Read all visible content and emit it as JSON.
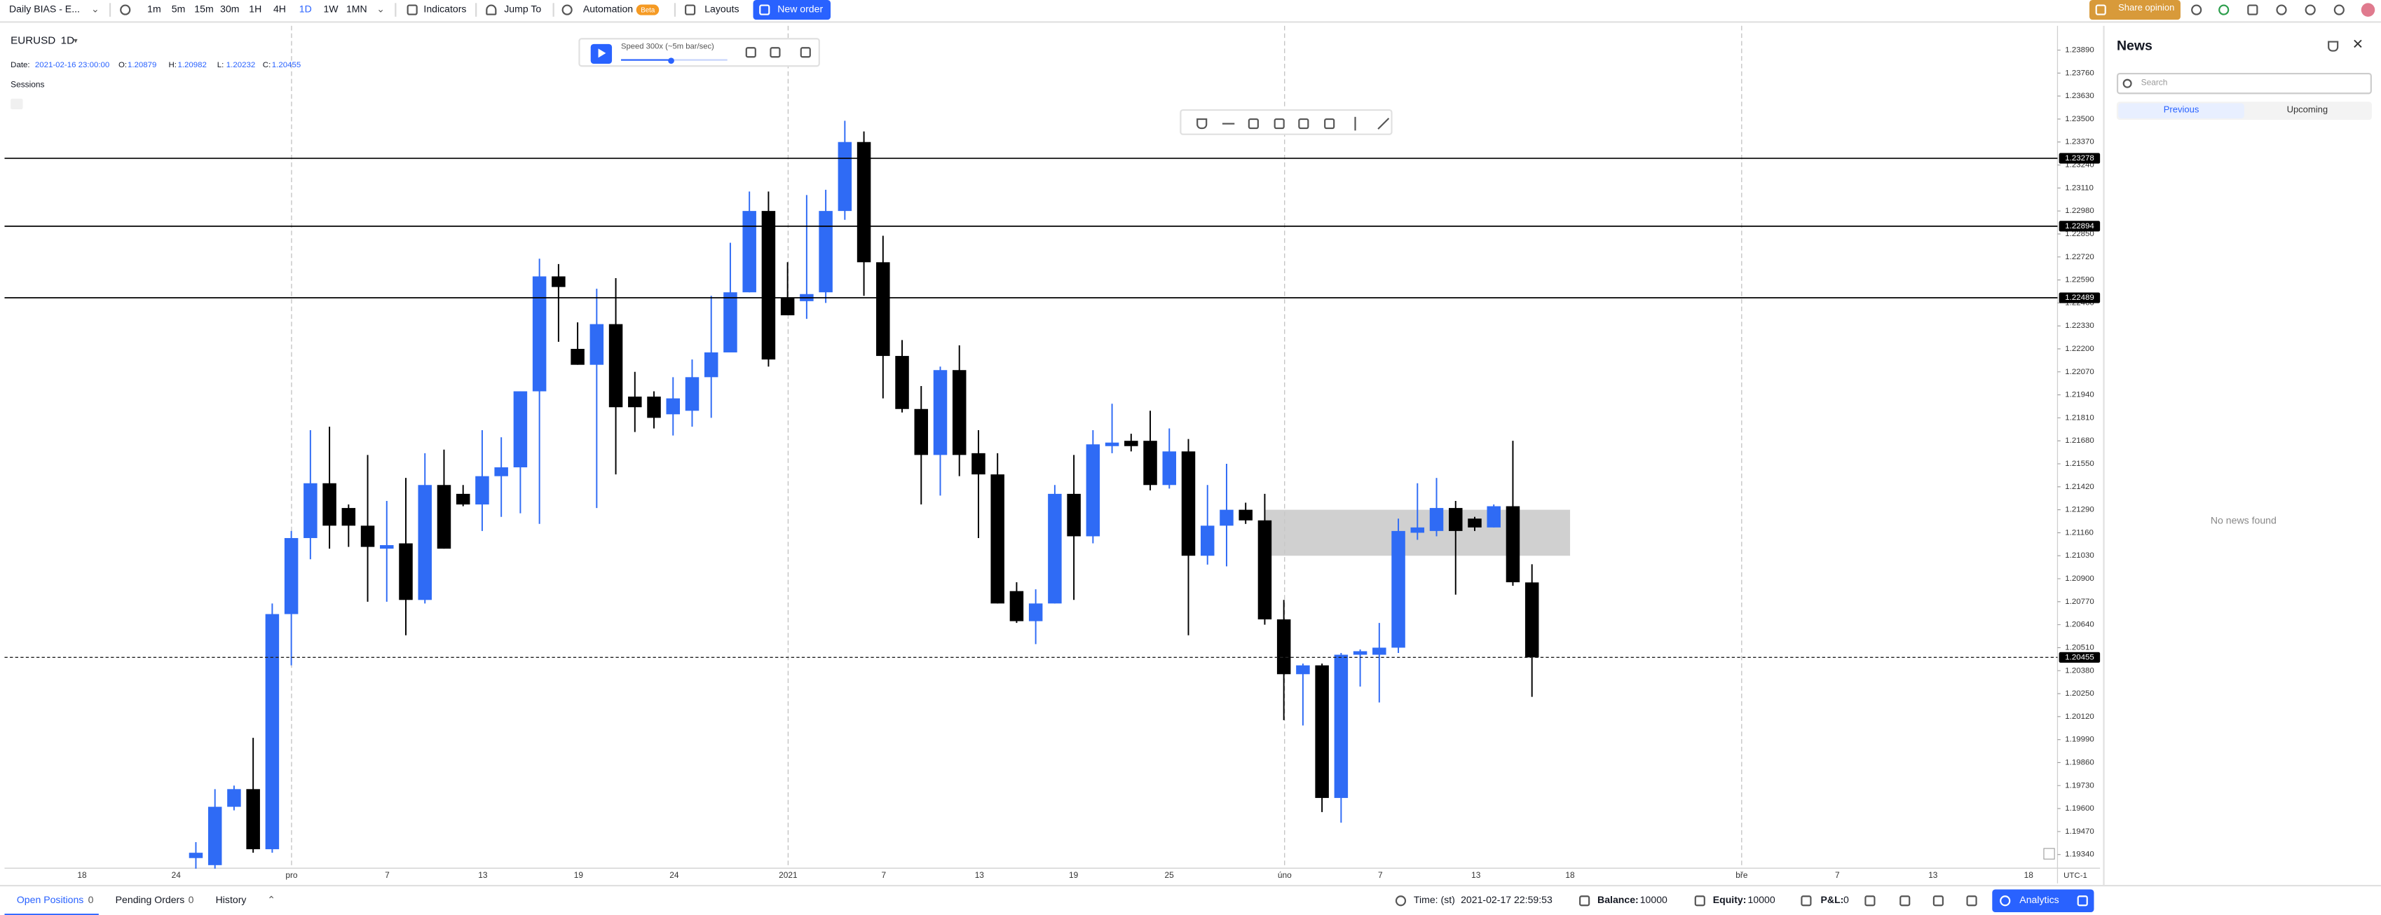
{
  "toolbar": {
    "layout_name": "Daily BIAS - E...",
    "timeframes": [
      "1m",
      "5m",
      "15m",
      "30m",
      "1H",
      "4H",
      "1D",
      "1W",
      "1MN"
    ],
    "active_timeframe_index": 6,
    "indicators": "Indicators",
    "jump_to": "Jump To",
    "automation": "Automation",
    "beta": "Beta",
    "layouts": "Layouts",
    "new_order": "New order",
    "share_opinion": "Share opinion"
  },
  "chart": {
    "symbol": "EURUSD",
    "interval": "1D",
    "ohlc": {
      "date_label": "Date:",
      "date": "2021-02-16 23:00:00",
      "o_label": "O:",
      "o": 1.20879,
      "h_label": "H:",
      "h": 1.20982,
      "l_label": "L:",
      "l": 1.20232,
      "c_label": "C:",
      "c": 1.20455
    },
    "sessions": "Sessions",
    "replay_speed": "Speed 300x (~5m bar/sec)",
    "up_color": "#2f6bf5",
    "down_color": "#000000",
    "price_ticks": [
      {
        "value": 1.2389,
        "label": "1.23890"
      },
      {
        "value": 1.2376,
        "label": "1.23760"
      },
      {
        "value": 1.2363,
        "label": "1.23630"
      },
      {
        "value": 1.235,
        "label": "1.23500"
      },
      {
        "value": 1.2337,
        "label": "1.23370"
      },
      {
        "value": 1.2324,
        "label": "1.23240"
      },
      {
        "value": 1.2311,
        "label": "1.23110"
      },
      {
        "value": 1.2298,
        "label": "1.22980"
      },
      {
        "value": 1.2285,
        "label": "1.22850"
      },
      {
        "value": 1.2272,
        "label": "1.22720"
      },
      {
        "value": 1.2259,
        "label": "1.22590"
      },
      {
        "value": 1.2246,
        "label": "1.22460"
      },
      {
        "value": 1.2233,
        "label": "1.22330"
      },
      {
        "value": 1.222,
        "label": "1.22200"
      },
      {
        "value": 1.2207,
        "label": "1.22070"
      },
      {
        "value": 1.2194,
        "label": "1.21940"
      },
      {
        "value": 1.2181,
        "label": "1.21810"
      },
      {
        "value": 1.2168,
        "label": "1.21680"
      },
      {
        "value": 1.2155,
        "label": "1.21550"
      },
      {
        "value": 1.2142,
        "label": "1.21420"
      },
      {
        "value": 1.2129,
        "label": "1.21290"
      },
      {
        "value": 1.2116,
        "label": "1.21160"
      },
      {
        "value": 1.2103,
        "label": "1.21030"
      },
      {
        "value": 1.209,
        "label": "1.20900"
      },
      {
        "value": 1.2077,
        "label": "1.20770"
      },
      {
        "value": 1.2064,
        "label": "1.20640"
      },
      {
        "value": 1.2051,
        "label": "1.20510"
      },
      {
        "value": 1.2038,
        "label": "1.20380"
      },
      {
        "value": 1.2025,
        "label": "1.20250"
      },
      {
        "value": 1.2012,
        "label": "1.20120"
      },
      {
        "value": 1.1999,
        "label": "1.19990"
      },
      {
        "value": 1.1986,
        "label": "1.19860"
      },
      {
        "value": 1.1973,
        "label": "1.19730"
      },
      {
        "value": 1.196,
        "label": "1.19600"
      },
      {
        "value": 1.1947,
        "label": "1.19470"
      },
      {
        "value": 1.1934,
        "label": "1.19340"
      }
    ],
    "levels": [
      1.23278,
      1.22894,
      1.22489
    ],
    "current_price": 1.20455,
    "zone": [
      1.2103,
      1.2129
    ],
    "candles": [
      [
        1.1932,
        1.1941,
        1.1926,
        1.1935
      ],
      [
        1.1928,
        1.1971,
        1.1926,
        1.1961
      ],
      [
        1.1961,
        1.1973,
        1.1959,
        1.1971
      ],
      [
        1.1971,
        1.2,
        1.1935,
        1.1937
      ],
      [
        1.1937,
        1.2076,
        1.1935,
        1.207
      ],
      [
        1.207,
        1.2117,
        1.2041,
        1.2113
      ],
      [
        1.2113,
        1.2174,
        1.2101,
        1.2144
      ],
      [
        1.2144,
        1.2176,
        1.2107,
        1.212
      ],
      [
        1.213,
        1.2132,
        1.2108,
        1.212
      ],
      [
        1.212,
        1.216,
        1.2077,
        1.2108
      ],
      [
        1.2107,
        1.2134,
        1.2077,
        1.2109
      ],
      [
        1.211,
        1.2147,
        1.2058,
        1.2078
      ],
      [
        1.2078,
        1.2161,
        1.2076,
        1.2143
      ],
      [
        1.2143,
        1.2163,
        1.2107,
        1.2107
      ],
      [
        1.2138,
        1.2143,
        1.2131,
        1.2132
      ],
      [
        1.2132,
        1.2174,
        1.2117,
        1.2148
      ],
      [
        1.2148,
        1.217,
        1.2125,
        1.2153
      ],
      [
        1.2153,
        1.2196,
        1.2127,
        1.2196
      ],
      [
        1.2196,
        1.2271,
        1.2121,
        1.2261
      ],
      [
        1.2261,
        1.2268,
        1.2224,
        1.2255
      ],
      [
        1.222,
        1.2235,
        1.2211,
        1.2211
      ],
      [
        1.2211,
        1.2254,
        1.213,
        1.2234
      ],
      [
        1.2234,
        1.226,
        1.2149,
        1.2187
      ],
      [
        1.2193,
        1.2207,
        1.2173,
        1.2187
      ],
      [
        1.2193,
        1.2196,
        1.2175,
        1.2181
      ],
      [
        1.2183,
        1.2204,
        1.2171,
        1.2192
      ],
      [
        1.2185,
        1.2214,
        1.2176,
        1.2204
      ],
      [
        1.2204,
        1.225,
        1.2181,
        1.2218
      ],
      [
        1.2218,
        1.228,
        1.2218,
        1.2252
      ],
      [
        1.2252,
        1.2309,
        1.2252,
        1.2298
      ],
      [
        1.2298,
        1.2309,
        1.221,
        1.2214
      ],
      [
        1.2249,
        1.2269,
        1.2239,
        1.2239
      ],
      [
        1.2247,
        1.2307,
        1.2237,
        1.2251
      ],
      [
        1.2252,
        1.231,
        1.2246,
        1.2298
      ],
      [
        1.2298,
        1.2349,
        1.2293,
        1.2337
      ],
      [
        1.2337,
        1.2343,
        1.225,
        1.2269
      ],
      [
        1.2269,
        1.2284,
        1.2192,
        1.2216
      ],
      [
        1.2216,
        1.2225,
        1.2184,
        1.2186
      ],
      [
        1.2186,
        1.2199,
        1.2132,
        1.216
      ],
      [
        1.216,
        1.221,
        1.2137,
        1.2208
      ],
      [
        1.2208,
        1.2222,
        1.2148,
        1.216
      ],
      [
        1.2161,
        1.2174,
        1.2113,
        1.2149
      ],
      [
        1.2149,
        1.2161,
        1.2076,
        1.2076
      ],
      [
        1.2083,
        1.2088,
        1.2065,
        1.2066
      ],
      [
        1.2066,
        1.2084,
        1.2053,
        1.2076
      ],
      [
        1.2076,
        1.2143,
        1.2076,
        1.2138
      ],
      [
        1.2138,
        1.216,
        1.2078,
        1.2114
      ],
      [
        1.2114,
        1.2174,
        1.211,
        1.2166
      ],
      [
        1.2165,
        1.2189,
        1.2161,
        1.2167
      ],
      [
        1.2168,
        1.2172,
        1.2162,
        1.2165
      ],
      [
        1.2168,
        1.2185,
        1.214,
        1.2143
      ],
      [
        1.2143,
        1.2175,
        1.2141,
        1.2162
      ],
      [
        1.2162,
        1.2169,
        1.2058,
        1.2103
      ],
      [
        1.2103,
        1.2143,
        1.2098,
        1.212
      ],
      [
        1.212,
        1.2155,
        1.2097,
        1.2129
      ],
      [
        1.2129,
        1.2133,
        1.2121,
        1.2123
      ],
      [
        1.2123,
        1.2138,
        1.2064,
        1.2067
      ],
      [
        1.2067,
        1.2078,
        1.201,
        1.2036
      ],
      [
        1.2036,
        1.2042,
        1.2007,
        1.2041
      ],
      [
        1.2041,
        1.2042,
        1.1958,
        1.1966
      ],
      [
        1.1966,
        1.2048,
        1.1952,
        1.2047
      ],
      [
        1.2047,
        1.205,
        1.2029,
        1.2049
      ],
      [
        1.2047,
        1.2065,
        1.202,
        1.2051
      ],
      [
        1.2051,
        1.2124,
        1.2048,
        1.2117
      ],
      [
        1.2116,
        1.2144,
        1.2112,
        1.2119
      ],
      [
        1.2117,
        1.2147,
        1.2114,
        1.213
      ],
      [
        1.213,
        1.2134,
        1.2081,
        1.2117
      ],
      [
        1.2124,
        1.2125,
        1.2117,
        1.2119
      ],
      [
        1.2119,
        1.2132,
        1.2119,
        1.2131
      ],
      [
        1.2131,
        1.2168,
        1.2086,
        1.2088
      ],
      [
        1.20879,
        1.20982,
        1.20232,
        1.20455
      ]
    ],
    "time_labels": [
      "18",
      "24",
      "pro",
      "7",
      "13",
      "19",
      "24",
      "2021",
      "7",
      "13",
      "19",
      "25",
      "úno",
      "7",
      "13",
      "18",
      "bře",
      "7",
      "13",
      "18"
    ],
    "timezone": "UTC-1"
  },
  "news": {
    "title": "News",
    "search_placeholder": "Search",
    "tabs": [
      "Previous",
      "Upcoming"
    ],
    "empty": "No news found"
  },
  "bottom": {
    "tabs": [
      {
        "label": "Open Positions",
        "count": 0
      },
      {
        "label": "Pending Orders",
        "count": 0
      },
      {
        "label": "History"
      }
    ],
    "time_label": "Time: (st)",
    "time": "2021-02-17 22:59:53",
    "balance_label": "Balance:",
    "balance": 10000,
    "equity_label": "Equity:",
    "equity": 10000,
    "pnl_label": "P&L:",
    "pnl": 0,
    "analytics": "Analytics"
  }
}
